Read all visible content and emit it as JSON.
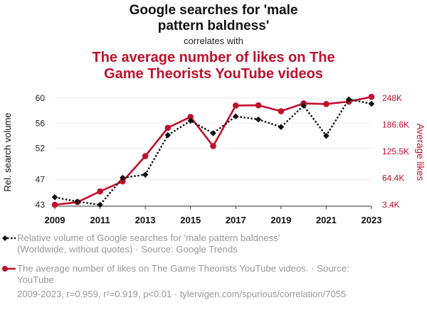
{
  "header": {
    "title_line1": "Google searches for 'male",
    "title_line2": "pattern baldness'",
    "correlates": "correlates with",
    "subtitle_line1": "The average number of likes on The",
    "subtitle_line2": "Game Theorists YouTube videos"
  },
  "colors": {
    "series1": "#111111",
    "series2": "#c0102c",
    "grid": "#eeeeee",
    "muted": "#999999"
  },
  "chart_data": {
    "type": "line",
    "x": [
      2009,
      2010,
      2011,
      2012,
      2013,
      2014,
      2015,
      2016,
      2017,
      2018,
      2019,
      2020,
      2021,
      2022,
      2023
    ],
    "xlabel": "",
    "xticks": [
      "2009",
      "2011",
      "2013",
      "2015",
      "2017",
      "2019",
      "2021",
      "2023"
    ],
    "left_axis": {
      "label": "Rel. search volume",
      "ylim": [
        43,
        60
      ],
      "ticks": [
        "43",
        "47",
        "52",
        "56",
        "60"
      ],
      "tick_values": [
        43,
        47,
        52,
        56,
        60
      ]
    },
    "right_axis": {
      "label": "Average likes",
      "ylim": [
        3400,
        248000
      ],
      "ticks": [
        "3.4K",
        "64.4K",
        "125.5K",
        "186.6K",
        "248K"
      ],
      "tick_values": [
        3400,
        64400,
        125500,
        186600,
        248000
      ]
    },
    "series": [
      {
        "name": "Google searches for 'male pattern baldness'",
        "axis": "left",
        "style": "dotted",
        "marker": "diamond",
        "values": [
          44.2,
          43.5,
          43.0,
          47.3,
          47.8,
          54.1,
          56.4,
          54.4,
          57.1,
          56.6,
          55.4,
          58.8,
          54.0,
          59.8,
          59.1
        ]
      },
      {
        "name": "The average number of likes on The Game Theorists YouTube videos",
        "axis": "right",
        "style": "solid",
        "marker": "circle",
        "values": [
          3400,
          9500,
          34000,
          57000,
          115000,
          180000,
          205000,
          138000,
          231000,
          231500,
          218000,
          236000,
          234500,
          240000,
          251000
        ]
      }
    ]
  },
  "legend": {
    "item1_line1": "Relative volume of Google searches for 'male pattern baldness'",
    "item1_line2": "(Worldwide, without quotes) · Source: Google Trends",
    "item2_line1": "The average number of likes on The Game Theorists YouTube videos. · Source:",
    "item2_line2": "YouTube"
  },
  "footer": "2009-2023, r=0.959, r²=0.919, p<0.01 · tylervigen.com/spurious/correlation/7055"
}
